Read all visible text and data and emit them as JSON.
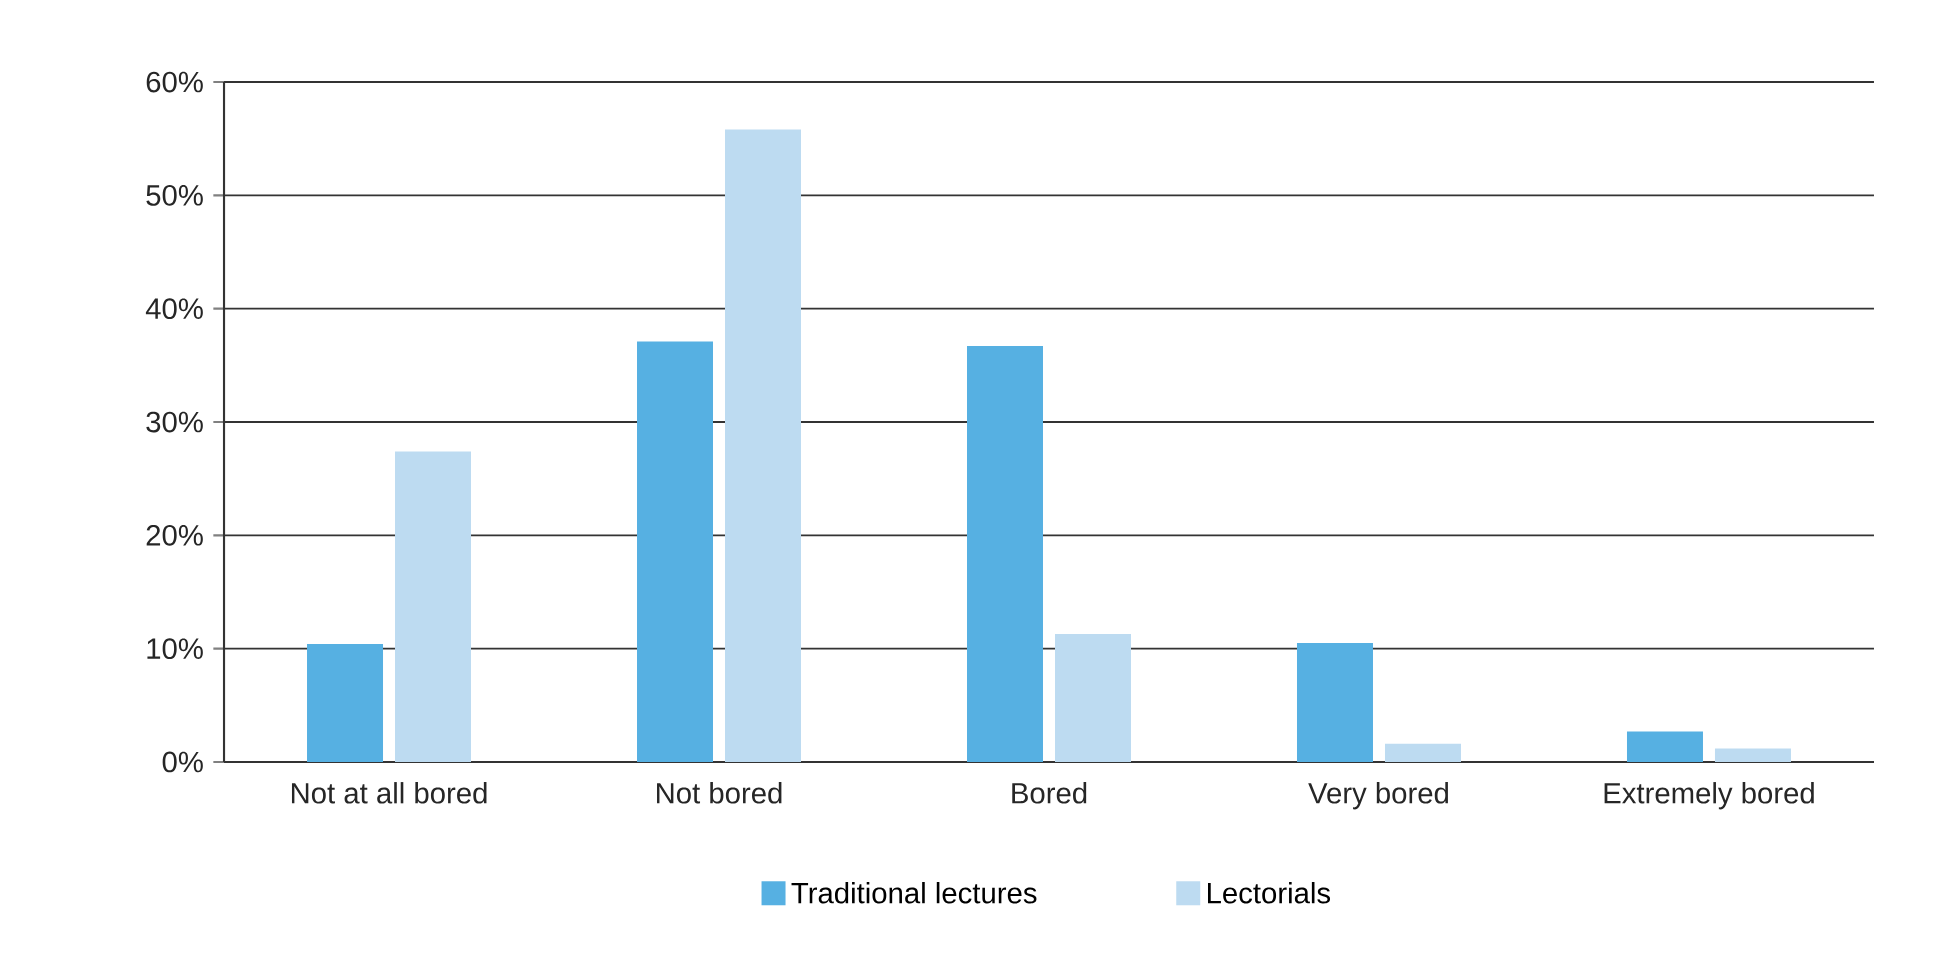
{
  "chart_data": {
    "type": "bar",
    "categories": [
      "Not at all bored",
      "Not bored",
      "Bored",
      "Very bored",
      "Extremely bored"
    ],
    "series": [
      {
        "name": "Traditional lectures",
        "color": "#56b0e2",
        "values": [
          10.4,
          37.1,
          36.7,
          10.5,
          2.7
        ]
      },
      {
        "name": "Lectorials",
        "color": "#bddbf1",
        "values": [
          27.4,
          55.8,
          11.3,
          1.6,
          1.2
        ]
      }
    ],
    "ylim": [
      0,
      60
    ],
    "yticks": [
      {
        "value": 0,
        "label": "0%"
      },
      {
        "value": 10,
        "label": "10%"
      },
      {
        "value": 20,
        "label": "20%"
      },
      {
        "value": 30,
        "label": "30%"
      },
      {
        "value": 40,
        "label": "40%"
      },
      {
        "value": 50,
        "label": "50%"
      },
      {
        "value": 60,
        "label": "60%"
      }
    ],
    "grid": "y",
    "legend": "bottom"
  }
}
